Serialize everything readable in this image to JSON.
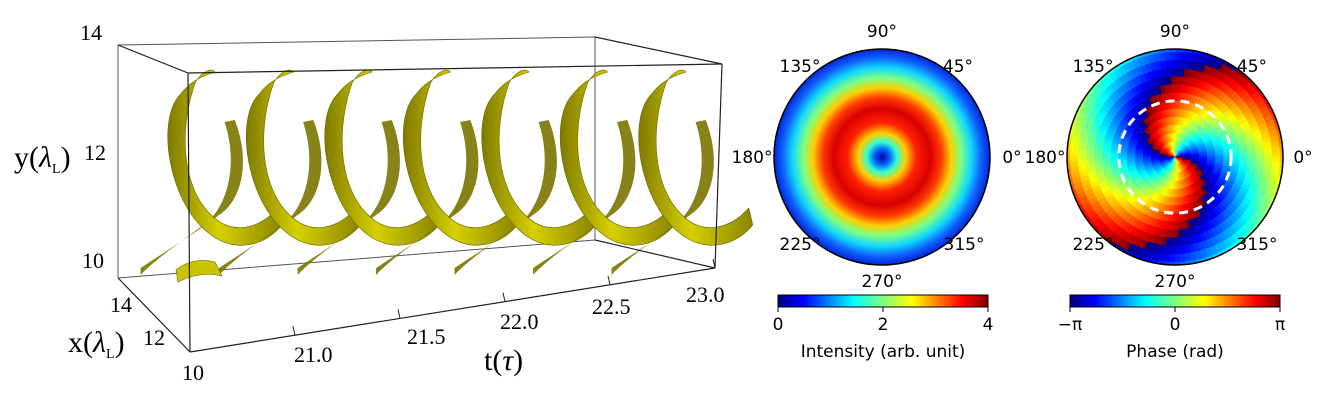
{
  "chart_data": [
    {
      "type": "isosurface-3d",
      "x_axis": {
        "label": "x",
        "label_symbol": "λ",
        "label_subscript": "L",
        "ticks": [
          "10",
          "12",
          "14"
        ]
      },
      "y_axis": {
        "label": "y",
        "label_symbol": "λ",
        "label_subscript": "L",
        "ticks": [
          "10",
          "12",
          "14"
        ]
      },
      "t_axis": {
        "label": "t",
        "label_symbol": "τ",
        "ticks": [
          "21.0",
          "21.5",
          "22.0",
          "22.5",
          "23.0"
        ],
        "range": [
          20.5,
          23.0
        ]
      },
      "surface_color": "#b6b100",
      "helix_turns": 7
    },
    {
      "type": "polar-heatmap",
      "angle_labels": [
        "0°",
        "45°",
        "90°",
        "135°",
        "180°",
        "225°",
        "270°",
        "315°"
      ],
      "colorbar": {
        "label": "Intensity (arb. unit)",
        "ticks": [
          "0",
          "2",
          "4"
        ],
        "range": [
          0,
          4
        ]
      },
      "peak_radius_fraction": 0.45,
      "colormap": "jet"
    },
    {
      "type": "polar-heatmap",
      "angle_labels": [
        "0°",
        "45°",
        "90°",
        "135°",
        "180°",
        "225°",
        "270°",
        "315°"
      ],
      "colorbar": {
        "label": "Phase (rad)",
        "ticks": [
          "−π",
          "0",
          "π"
        ],
        "range": [
          -3.1416,
          3.1416
        ]
      },
      "topological_charge": 2,
      "reference_circle_radius_fraction": 0.52,
      "colormap": "jet"
    }
  ]
}
